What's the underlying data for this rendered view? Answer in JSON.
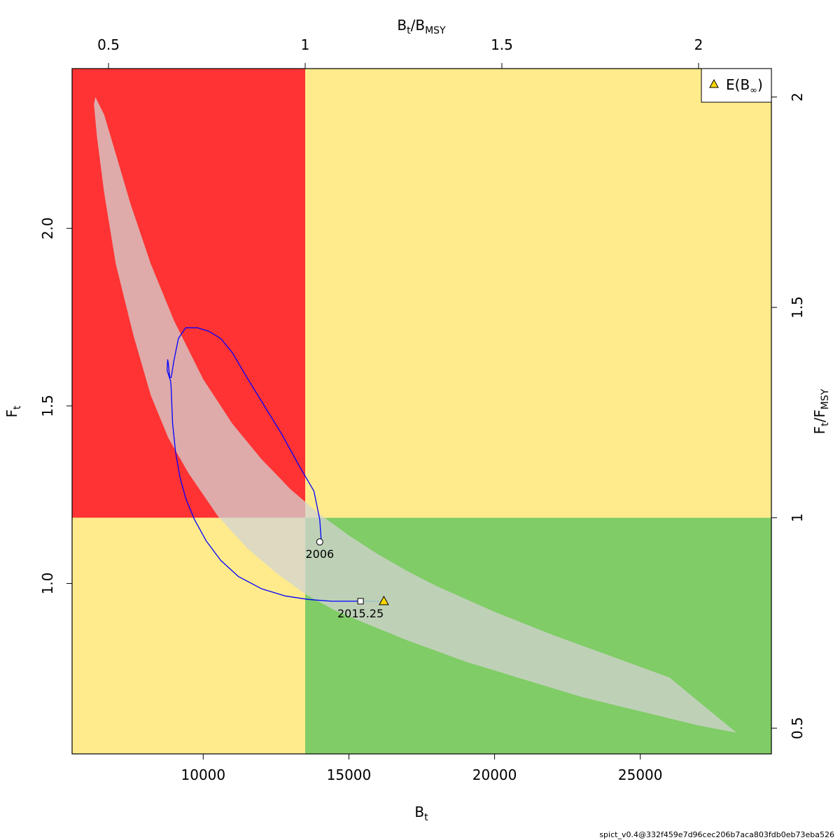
{
  "chart_data": {
    "type": "scatter",
    "xlabel": "B",
    "xlabel_sub": "t",
    "ylabel": "F",
    "ylabel_sub": "t",
    "x2label": [
      "B",
      "t",
      "B",
      "MSY"
    ],
    "y2label": [
      "F",
      "t",
      "F",
      "MSY"
    ],
    "xlim": [
      5500,
      29500
    ],
    "ylim": [
      0.52,
      2.45
    ],
    "x_ticks": [
      10000,
      15000,
      20000,
      25000
    ],
    "x_tick_labels": [
      "10000",
      "15000",
      "20000",
      "25000"
    ],
    "y_ticks": [
      1.0,
      1.5,
      2.0
    ],
    "y_tick_labels": [
      "1.0",
      "1.5",
      "2.0"
    ],
    "x2_ticks": [
      0.5,
      1,
      1.5,
      2
    ],
    "x2_tick_labels": [
      "0.5",
      "1",
      "1.5",
      "2"
    ],
    "y2_ticks": [
      0.5,
      1,
      1.5,
      2
    ],
    "y2_tick_labels": [
      "0.5",
      "1",
      "1.5",
      "2"
    ],
    "Bmsy": 13500,
    "Fmsy": 1.185,
    "regions": [
      {
        "x": [
          5500,
          13500
        ],
        "y": [
          1.185,
          2.45
        ],
        "color": "#FF3333"
      },
      {
        "x": [
          13500,
          29500
        ],
        "y": [
          1.185,
          2.45
        ],
        "color": "#FFEB8C"
      },
      {
        "x": [
          5500,
          13500
        ],
        "y": [
          0.52,
          1.185
        ],
        "color": "#FFEB8C"
      },
      {
        "x": [
          13500,
          29500
        ],
        "y": [
          0.52,
          1.185
        ],
        "color": "#80CC66"
      }
    ],
    "confidence_region": {
      "color": "#D3D3D3",
      "opacity": 0.75,
      "x": [
        6300,
        6600,
        7000,
        7500,
        8200,
        9000,
        10000,
        11000,
        12000,
        13000,
        14000,
        15000,
        16000,
        17000,
        18000,
        20000,
        22000,
        24000,
        26000,
        28300,
        27000,
        25000,
        23000,
        21000,
        19000,
        17000,
        15500,
        14500,
        13500,
        12500,
        11500,
        10500,
        9500,
        8800,
        8200,
        7600,
        7000,
        6600,
        6350,
        6250
      ],
      "y": [
        2.37,
        2.32,
        2.21,
        2.07,
        1.9,
        1.74,
        1.575,
        1.45,
        1.35,
        1.265,
        1.195,
        1.135,
        1.082,
        1.035,
        0.993,
        0.92,
        0.855,
        0.795,
        0.735,
        0.58,
        0.6,
        0.64,
        0.68,
        0.73,
        0.78,
        0.84,
        0.89,
        0.925,
        0.97,
        1.03,
        1.1,
        1.19,
        1.31,
        1.41,
        1.53,
        1.7,
        1.9,
        2.1,
        2.26,
        2.35
      ]
    },
    "series": [
      {
        "color": "#0000FF",
        "x": [
          14050,
          14000,
          13800,
          13300,
          12700,
          12100,
          11500,
          11000,
          10600,
          10200,
          9800,
          9400,
          9150,
          9000,
          8900,
          8850,
          8800,
          8780,
          8760,
          8800,
          8880,
          8900,
          8950,
          9050,
          9200,
          9400,
          9700,
          10100,
          10600,
          11200,
          12000,
          12800,
          13600,
          14400,
          15000,
          15400
        ],
        "y": [
          1.12,
          1.18,
          1.26,
          1.33,
          1.42,
          1.5,
          1.58,
          1.65,
          1.69,
          1.71,
          1.72,
          1.72,
          1.69,
          1.63,
          1.58,
          1.58,
          1.62,
          1.63,
          1.6,
          1.59,
          1.57,
          1.55,
          1.45,
          1.37,
          1.3,
          1.24,
          1.18,
          1.12,
          1.065,
          1.02,
          0.985,
          0.965,
          0.955,
          0.95,
          0.95,
          0.95
        ]
      }
    ],
    "points": [
      {
        "name": "start",
        "x": 14000,
        "y": 1.117,
        "shape": "circle",
        "label": "2006"
      },
      {
        "name": "end",
        "x": 15400,
        "y": 0.95,
        "shape": "square",
        "label": "2015.25"
      },
      {
        "name": "E(B∞)",
        "x": 16200,
        "y": 0.95,
        "shape": "triangle",
        "color": "#FFD700"
      }
    ],
    "connector": {
      "from": "end",
      "to": "E(B∞)",
      "style": "dotted",
      "color": "#4A90E2"
    },
    "legend": {
      "position": "top-right",
      "entries": [
        {
          "label": "E(B∞)",
          "text": "E(B",
          "sub": "∞",
          "close": ")",
          "shape": "triangle",
          "color": "#FFD700"
        }
      ]
    }
  },
  "footer_text": "spict_v0.4@332f459e7d96cec206b7aca803fdb0eb73eba526"
}
